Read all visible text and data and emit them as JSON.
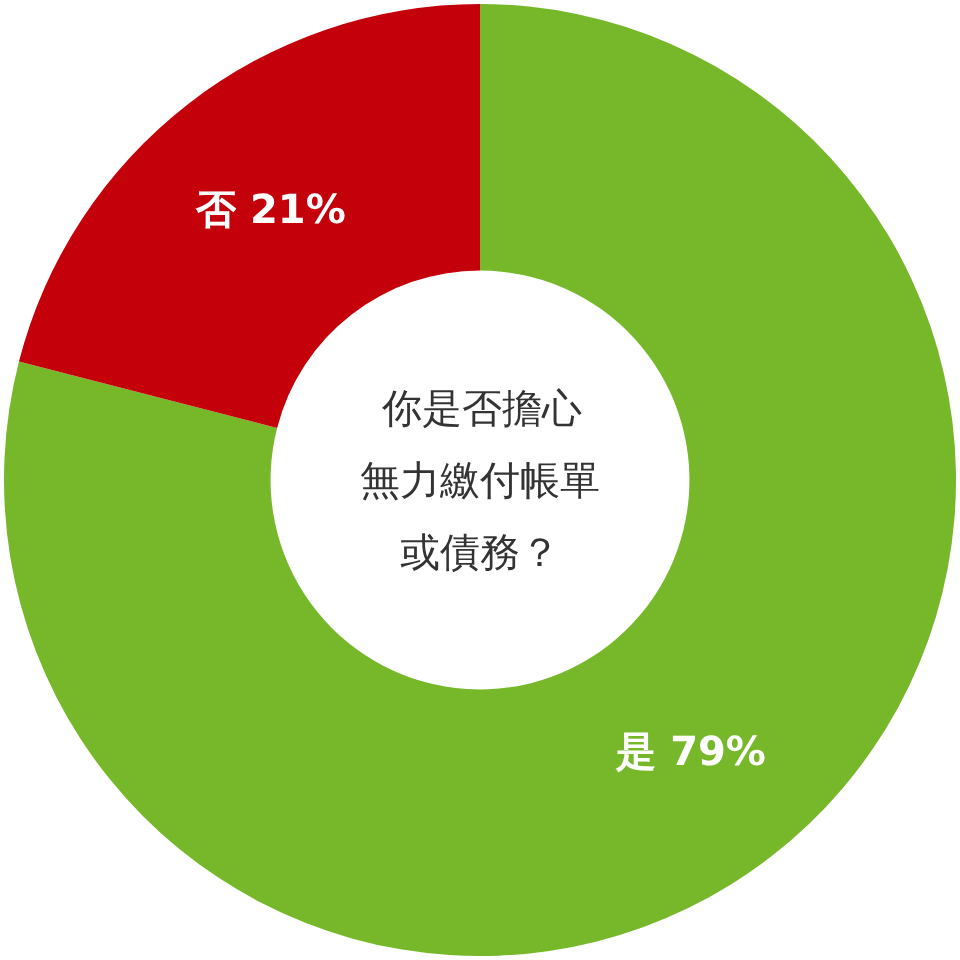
{
  "chart_data": {
    "type": "donut",
    "annotations": [
      "你是否擔心",
      "無力繳付帳單",
      "或債務？"
    ],
    "categories": [
      "是",
      "否"
    ],
    "values": [
      79,
      21
    ],
    "colors": [
      "#76b82a",
      "#c4000b"
    ],
    "value_labels": [
      "79%",
      "21%"
    ],
    "legend": false
  }
}
